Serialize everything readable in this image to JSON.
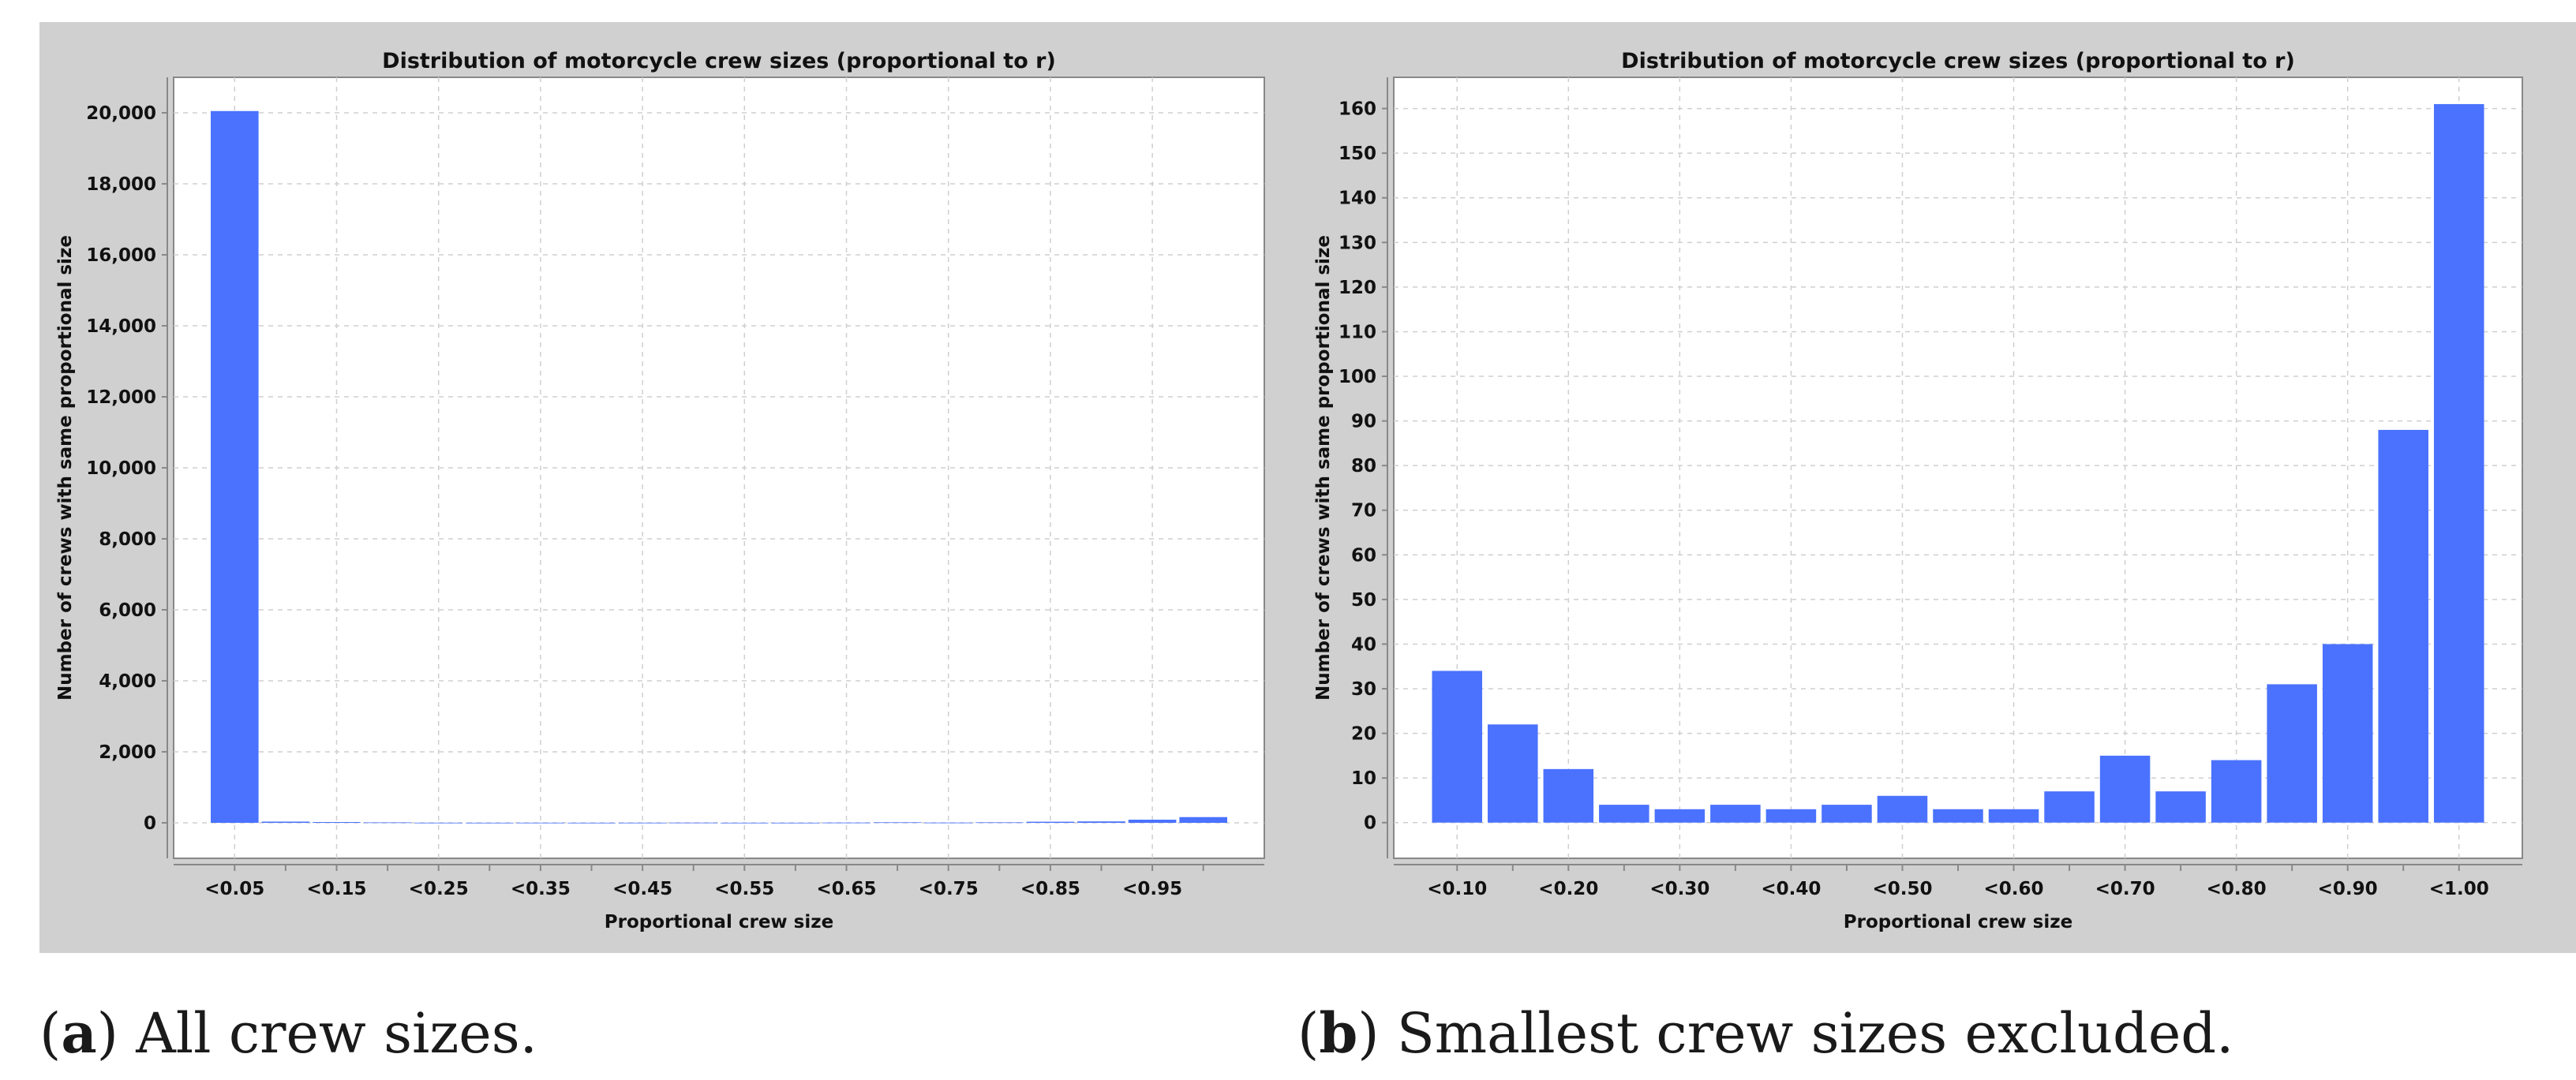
{
  "chart_data": [
    {
      "id": "a",
      "type": "bar",
      "title": "Distribution of motorcycle crew sizes (proportional to r)",
      "xlabel": "Proportional crew size",
      "ylabel": "Number of crews with same proportional size",
      "ylim": [
        -1000,
        21000
      ],
      "yticks": [
        0,
        2000,
        4000,
        6000,
        8000,
        10000,
        12000,
        14000,
        16000,
        18000,
        20000
      ],
      "ytick_labels": [
        "0",
        "2,000",
        "4,000",
        "6,000",
        "8,000",
        "10,000",
        "12,000",
        "14,000",
        "16,000",
        "18,000",
        "20,000"
      ],
      "categories": [
        "<0.05",
        "<0.10",
        "<0.15",
        "<0.20",
        "<0.25",
        "<0.30",
        "<0.35",
        "<0.40",
        "<0.45",
        "<0.50",
        "<0.55",
        "<0.60",
        "<0.65",
        "<0.70",
        "<0.75",
        "<0.80",
        "<0.85",
        "<0.90",
        "<0.95",
        "<1.00"
      ],
      "xtick_labels": [
        "<0.05",
        "",
        "<0.15",
        "",
        "<0.25",
        "",
        "<0.35",
        "",
        "<0.45",
        "",
        "<0.55",
        "",
        "<0.65",
        "",
        "<0.75",
        "",
        "<0.85",
        "",
        "<0.95",
        ""
      ],
      "values": [
        20050,
        34,
        22,
        12,
        4,
        3,
        4,
        3,
        4,
        6,
        3,
        3,
        7,
        15,
        7,
        14,
        31,
        40,
        88,
        161
      ],
      "grid": true,
      "bar_color": "#4a72ff"
    },
    {
      "id": "b",
      "type": "bar",
      "title": "Distribution of motorcycle crew sizes (proportional to r)",
      "xlabel": "Proportional crew size",
      "ylabel": "Number of crews with same proportional size",
      "ylim": [
        -8,
        167
      ],
      "yticks": [
        0,
        10,
        20,
        30,
        40,
        50,
        60,
        70,
        80,
        90,
        100,
        110,
        120,
        130,
        140,
        150,
        160
      ],
      "ytick_labels": [
        "0",
        "10",
        "20",
        "30",
        "40",
        "50",
        "60",
        "70",
        "80",
        "90",
        "100",
        "110",
        "120",
        "130",
        "140",
        "150",
        "160"
      ],
      "categories": [
        "<0.10",
        "<0.15",
        "<0.20",
        "<0.25",
        "<0.30",
        "<0.35",
        "<0.40",
        "<0.45",
        "<0.50",
        "<0.55",
        "<0.60",
        "<0.65",
        "<0.70",
        "<0.75",
        "<0.80",
        "<0.85",
        "<0.90",
        "<0.95",
        "<1.00"
      ],
      "xtick_labels": [
        "<0.10",
        "",
        "<0.20",
        "",
        "<0.30",
        "",
        "<0.40",
        "",
        "<0.50",
        "",
        "<0.60",
        "",
        "<0.70",
        "",
        "<0.80",
        "",
        "<0.90",
        "",
        "<1.00"
      ],
      "values": [
        34,
        22,
        12,
        4,
        3,
        4,
        3,
        4,
        6,
        3,
        3,
        7,
        15,
        7,
        14,
        31,
        40,
        88,
        161
      ],
      "grid": true,
      "bar_color": "#4a72ff"
    }
  ],
  "captions": {
    "a": {
      "letter": "a",
      "text": " All crew sizes."
    },
    "b": {
      "letter": "b",
      "text": " Smallest crew sizes excluded."
    }
  }
}
